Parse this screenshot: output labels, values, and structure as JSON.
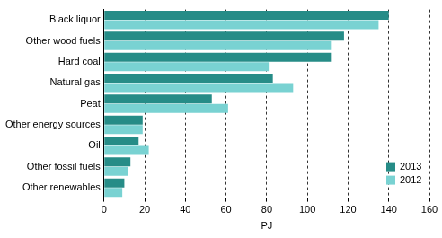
{
  "chart_data": {
    "type": "bar",
    "orientation": "horizontal",
    "categories": [
      "Black liquor",
      "Other wood fuels",
      "Hard coal",
      "Natural gas",
      "Peat",
      "Other energy sources",
      "Oil",
      "Other fossil fuels",
      "Other renewables"
    ],
    "series": [
      {
        "name": "2013",
        "color": "#268c87",
        "values": [
          140,
          118,
          112,
          83,
          53,
          19,
          17,
          13,
          10
        ]
      },
      {
        "name": "2012",
        "color": "#79d2d2",
        "values": [
          135,
          112,
          81,
          93,
          61,
          19,
          22,
          12,
          9
        ]
      }
    ],
    "x_label": "PJ",
    "xlim": [
      0,
      160
    ],
    "xticks": [
      0,
      20,
      40,
      60,
      80,
      100,
      120,
      140,
      160
    ],
    "grid": true,
    "legend": "lower right"
  }
}
